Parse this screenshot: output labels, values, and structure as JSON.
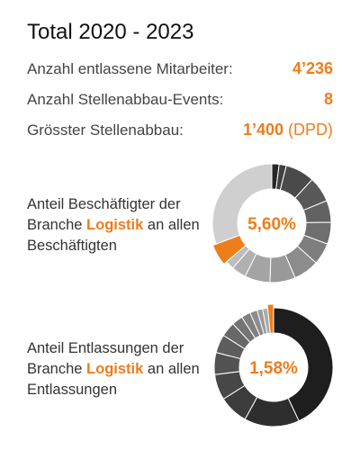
{
  "title": "Total 2020 - 2023",
  "stats": [
    {
      "label": "Anzahl entlassene Mitarbeiter:",
      "value": "4’236",
      "suffix": ""
    },
    {
      "label": "Anzahl Stellenabbau-Events:",
      "value": "8",
      "suffix": ""
    },
    {
      "label": "Grösster Stellenabbau:",
      "value": "1’400",
      "suffix": " (DPD)"
    }
  ],
  "colors": {
    "accent": "#ee7d1a",
    "gap": "#ffffff"
  },
  "donuts": [
    {
      "text_before": "Anteil Beschäftigter der Branche ",
      "highlight": "Logistik",
      "text_after": " an allen Beschäftigten",
      "center_label": "5,60%",
      "highlight_share_percent": 5.6,
      "segments": [
        {
          "value": 2.0,
          "color": "#262626"
        },
        {
          "value": 2.0,
          "color": "#404040"
        },
        {
          "value": 8.0,
          "color": "#4a4a4a"
        },
        {
          "value": 7.0,
          "color": "#585858"
        },
        {
          "value": 6.0,
          "color": "#626262"
        },
        {
          "value": 6.0,
          "color": "#6e6e6e"
        },
        {
          "value": 6.0,
          "color": "#7e7e7e"
        },
        {
          "value": 7.0,
          "color": "#8c8c8c"
        },
        {
          "value": 7.0,
          "color": "#999999"
        },
        {
          "value": 7.0,
          "color": "#a4a4a4"
        },
        {
          "value": 4.0,
          "color": "#b0b0b0"
        },
        {
          "value": 2.4,
          "color": "#bdbdbd"
        },
        {
          "value": 5.6,
          "color": "#ee7d1a"
        },
        {
          "value": 31.0,
          "color": "#cfcfcf"
        }
      ]
    },
    {
      "text_before": "Anteil Entlassungen der Branche ",
      "highlight": "Logistik",
      "text_after": " an allen Entlassungen",
      "center_label": "1,58%",
      "highlight_share_percent": 1.58,
      "segments": [
        {
          "value": 43.0,
          "color": "#1e1e1e"
        },
        {
          "value": 15.0,
          "color": "#2e2e2e"
        },
        {
          "value": 8.0,
          "color": "#3c3c3c"
        },
        {
          "value": 7.0,
          "color": "#474747"
        },
        {
          "value": 6.0,
          "color": "#525252"
        },
        {
          "value": 5.0,
          "color": "#5d5d5d"
        },
        {
          "value": 4.0,
          "color": "#686868"
        },
        {
          "value": 3.0,
          "color": "#747474"
        },
        {
          "value": 2.5,
          "color": "#808080"
        },
        {
          "value": 2.0,
          "color": "#8c8c8c"
        },
        {
          "value": 1.5,
          "color": "#9a9a9a"
        },
        {
          "value": 1.42,
          "color": "#aaaaaa"
        },
        {
          "value": 1.58,
          "color": "#ee7d1a"
        }
      ]
    }
  ]
}
